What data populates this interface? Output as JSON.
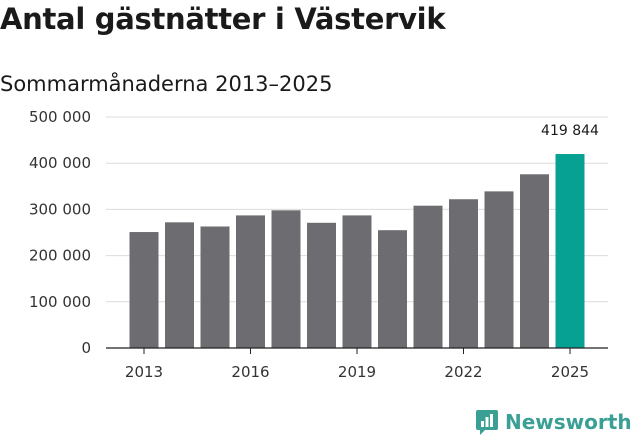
{
  "header": {
    "title": "Antal gästnätter i Västervik",
    "subtitle": "Sommarmånaderna 2013–2025"
  },
  "brand": {
    "name": "Newsworthy",
    "icon": "newsworthy-logo-icon",
    "color": "#3a9f94"
  },
  "colors": {
    "bar": "#6d6c71",
    "highlight": "#06a193",
    "grid": "#dcdcdc",
    "axis": "#222222"
  },
  "chart_data": {
    "type": "bar",
    "categories": [
      "2013",
      "2014",
      "2015",
      "2016",
      "2017",
      "2018",
      "2019",
      "2020",
      "2021",
      "2022",
      "2023",
      "2024",
      "2025"
    ],
    "values": [
      251000,
      272000,
      263000,
      287000,
      298000,
      271000,
      287000,
      255000,
      308000,
      322000,
      339000,
      376000,
      419844
    ],
    "highlight_index": 12,
    "x_tick_labels": [
      "2013",
      "2016",
      "2019",
      "2022",
      "2025"
    ],
    "y_ticks": [
      0,
      100000,
      200000,
      300000,
      400000,
      500000
    ],
    "y_tick_labels": [
      "0",
      "100 000",
      "200 000",
      "300 000",
      "400 000",
      "500 000"
    ],
    "ylim": [
      0,
      500000
    ],
    "annotation": "419 844",
    "grid": true,
    "legend": "none"
  }
}
